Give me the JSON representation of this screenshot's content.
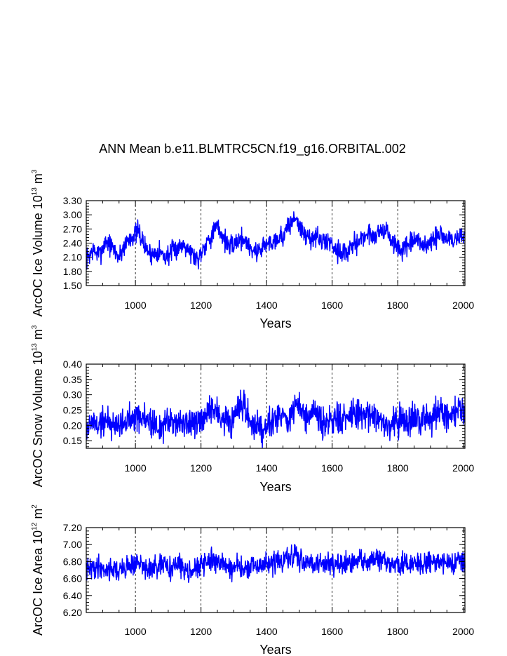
{
  "title": "ANN Mean b.e11.BLMTRC5CN.f19_g16.ORBITAL.002",
  "colors": {
    "series": "#0000ff",
    "axis": "#000000"
  },
  "chart_data": [
    {
      "type": "line",
      "name": "ice-volume",
      "ylabel": {
        "prefix": "ArcOC Ice Volume 10",
        "exp": "13",
        "unit": " m",
        "unit_exp": "3"
      },
      "xlabel": "Years",
      "xlim": [
        850,
        2005
      ],
      "ylim": [
        1.5,
        3.3
      ],
      "xticks": [
        1000,
        1200,
        1400,
        1600,
        1800,
        2000
      ],
      "xtick_labels": [
        "1000",
        "1200",
        "1400",
        "1600",
        "1800",
        "2000"
      ],
      "yticks": [
        1.5,
        1.8,
        2.1,
        2.4,
        2.7,
        3.0,
        3.3
      ],
      "ytick_labels": [
        "1.50",
        "1.80",
        "2.10",
        "2.40",
        "2.70",
        "3.00",
        "3.30"
      ],
      "grid_x": [
        1000,
        1200,
        1400,
        1600,
        1800
      ],
      "x": [
        850,
        870,
        890,
        910,
        930,
        950,
        970,
        990,
        1010,
        1030,
        1050,
        1070,
        1090,
        1110,
        1130,
        1150,
        1170,
        1190,
        1210,
        1230,
        1250,
        1270,
        1290,
        1310,
        1330,
        1350,
        1370,
        1390,
        1410,
        1430,
        1450,
        1470,
        1490,
        1510,
        1530,
        1550,
        1570,
        1590,
        1610,
        1630,
        1650,
        1670,
        1690,
        1710,
        1730,
        1750,
        1770,
        1790,
        1810,
        1830,
        1850,
        1870,
        1890,
        1910,
        1930,
        1950,
        1970,
        1990,
        2005
      ],
      "values": [
        2.05,
        2.25,
        2.15,
        2.45,
        2.3,
        2.1,
        2.4,
        2.55,
        2.65,
        2.3,
        2.15,
        2.25,
        2.1,
        2.2,
        2.3,
        2.4,
        2.2,
        2.05,
        2.35,
        2.55,
        2.75,
        2.5,
        2.3,
        2.45,
        2.5,
        2.3,
        2.2,
        2.35,
        2.4,
        2.5,
        2.55,
        2.8,
        2.95,
        2.6,
        2.5,
        2.55,
        2.4,
        2.45,
        2.3,
        2.2,
        2.2,
        2.4,
        2.5,
        2.6,
        2.55,
        2.7,
        2.6,
        2.35,
        2.25,
        2.3,
        2.45,
        2.4,
        2.35,
        2.45,
        2.6,
        2.5,
        2.45,
        2.55,
        2.55
      ],
      "noise": 0.22,
      "seed": 7
    },
    {
      "type": "line",
      "name": "snow-volume",
      "ylabel": {
        "prefix": "ArcOC Snow Volume 10",
        "exp": "13",
        "unit": " m",
        "unit_exp": "3"
      },
      "xlabel": "Years",
      "xlim": [
        850,
        2005
      ],
      "ylim": [
        0.125,
        0.4
      ],
      "xticks": [
        1000,
        1200,
        1400,
        1600,
        1800,
        2000
      ],
      "xtick_labels": [
        "1000",
        "1200",
        "1400",
        "1600",
        "1800",
        "2000"
      ],
      "yticks": [
        0.15,
        0.2,
        0.25,
        0.3,
        0.35,
        0.4
      ],
      "ytick_labels": [
        "0.15",
        "0.20",
        "0.25",
        "0.30",
        "0.35",
        "0.40"
      ],
      "grid_x": [
        1000,
        1200,
        1400,
        1600,
        1800
      ],
      "x": [
        850,
        870,
        890,
        910,
        930,
        950,
        970,
        990,
        1010,
        1030,
        1050,
        1070,
        1090,
        1110,
        1130,
        1150,
        1170,
        1190,
        1210,
        1230,
        1250,
        1270,
        1290,
        1310,
        1330,
        1350,
        1370,
        1390,
        1410,
        1430,
        1450,
        1470,
        1490,
        1510,
        1530,
        1550,
        1570,
        1590,
        1610,
        1630,
        1650,
        1670,
        1690,
        1710,
        1730,
        1750,
        1770,
        1790,
        1810,
        1830,
        1850,
        1870,
        1890,
        1910,
        1930,
        1950,
        1970,
        1990,
        2005
      ],
      "values": [
        0.19,
        0.21,
        0.2,
        0.22,
        0.2,
        0.21,
        0.2,
        0.24,
        0.23,
        0.22,
        0.21,
        0.19,
        0.2,
        0.21,
        0.22,
        0.2,
        0.21,
        0.2,
        0.21,
        0.26,
        0.24,
        0.22,
        0.2,
        0.24,
        0.26,
        0.21,
        0.2,
        0.19,
        0.22,
        0.23,
        0.24,
        0.21,
        0.27,
        0.24,
        0.22,
        0.23,
        0.21,
        0.2,
        0.23,
        0.21,
        0.22,
        0.24,
        0.23,
        0.24,
        0.23,
        0.22,
        0.2,
        0.21,
        0.22,
        0.21,
        0.22,
        0.21,
        0.22,
        0.24,
        0.26,
        0.23,
        0.24,
        0.26,
        0.24
      ],
      "noise": 0.05,
      "seed": 19
    },
    {
      "type": "line",
      "name": "ice-area",
      "ylabel": {
        "prefix": "ArcOC Ice Area 10",
        "exp": "12",
        "unit": " m",
        "unit_exp": "2"
      },
      "xlabel": "Years",
      "xlim": [
        850,
        2005
      ],
      "ylim": [
        6.2,
        7.2
      ],
      "xticks": [
        1000,
        1200,
        1400,
        1600,
        1800,
        2000
      ],
      "xtick_labels": [
        "1000",
        "1200",
        "1400",
        "1600",
        "1800",
        "2000"
      ],
      "yticks": [
        6.2,
        6.4,
        6.6,
        6.8,
        7.0,
        7.2
      ],
      "ytick_labels": [
        "6.20",
        "6.40",
        "6.60",
        "6.80",
        "7.00",
        "7.20"
      ],
      "grid_x": [
        1000,
        1200,
        1400,
        1600,
        1800
      ],
      "x": [
        850,
        870,
        890,
        910,
        930,
        950,
        970,
        990,
        1010,
        1030,
        1050,
        1070,
        1090,
        1110,
        1130,
        1150,
        1170,
        1190,
        1210,
        1230,
        1250,
        1270,
        1290,
        1310,
        1330,
        1350,
        1370,
        1390,
        1410,
        1430,
        1450,
        1470,
        1490,
        1510,
        1530,
        1550,
        1570,
        1590,
        1610,
        1630,
        1650,
        1670,
        1690,
        1710,
        1730,
        1750,
        1770,
        1790,
        1810,
        1830,
        1850,
        1870,
        1890,
        1910,
        1930,
        1950,
        1970,
        1990,
        2005
      ],
      "values": [
        6.7,
        6.72,
        6.75,
        6.7,
        6.72,
        6.68,
        6.74,
        6.76,
        6.78,
        6.72,
        6.7,
        6.74,
        6.75,
        6.73,
        6.76,
        6.72,
        6.7,
        6.72,
        6.78,
        6.8,
        6.82,
        6.76,
        6.72,
        6.74,
        6.7,
        6.72,
        6.74,
        6.76,
        6.78,
        6.8,
        6.8,
        6.84,
        6.86,
        6.82,
        6.8,
        6.78,
        6.76,
        6.8,
        6.78,
        6.74,
        6.76,
        6.8,
        6.82,
        6.8,
        6.82,
        6.8,
        6.78,
        6.76,
        6.76,
        6.78,
        6.76,
        6.78,
        6.8,
        6.82,
        6.8,
        6.78,
        6.8,
        6.82,
        6.82
      ],
      "noise": 0.13,
      "seed": 41
    }
  ]
}
